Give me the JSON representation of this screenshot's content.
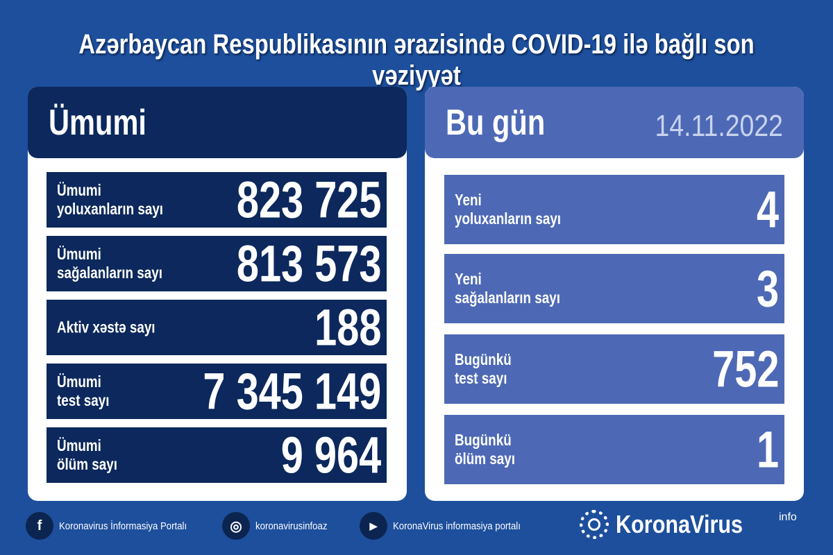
{
  "title": "Azərbaycan Respublikasının ərazisində COVID-19 ilə bağlı son vəziyyət",
  "total": {
    "heading": "Ümumi",
    "rows": [
      {
        "label": "Ümumi\nyoluxanların sayı",
        "value": "823 725"
      },
      {
        "label": "Ümumi\nsağalanların sayı",
        "value": "813 573"
      },
      {
        "label": "Aktiv xəstə sayı",
        "value": "188"
      },
      {
        "label": "Ümumi\ntest sayı",
        "value": "7 345 149"
      },
      {
        "label": "Ümumi\nölüm sayı",
        "value": "9 964"
      }
    ]
  },
  "today": {
    "heading": "Bu gün",
    "date": "14.11.2022",
    "rows": [
      {
        "label": "Yeni\nyoluxanların sayı",
        "value": "4"
      },
      {
        "label": "Yeni\nsağalanların sayı",
        "value": "3"
      },
      {
        "label": "Bugünkü\ntest sayı",
        "value": "752"
      },
      {
        "label": "Bugünkü\nölüm sayı",
        "value": "1"
      }
    ]
  },
  "footer": {
    "facebook": "Koronavirus İnformasiya Portalı",
    "instagram": "koronavirusinfoaz",
    "youtube": "KoronaVirus informasiya portalı"
  },
  "logo": {
    "text": "KoronaVirus",
    "sup": "info"
  }
}
